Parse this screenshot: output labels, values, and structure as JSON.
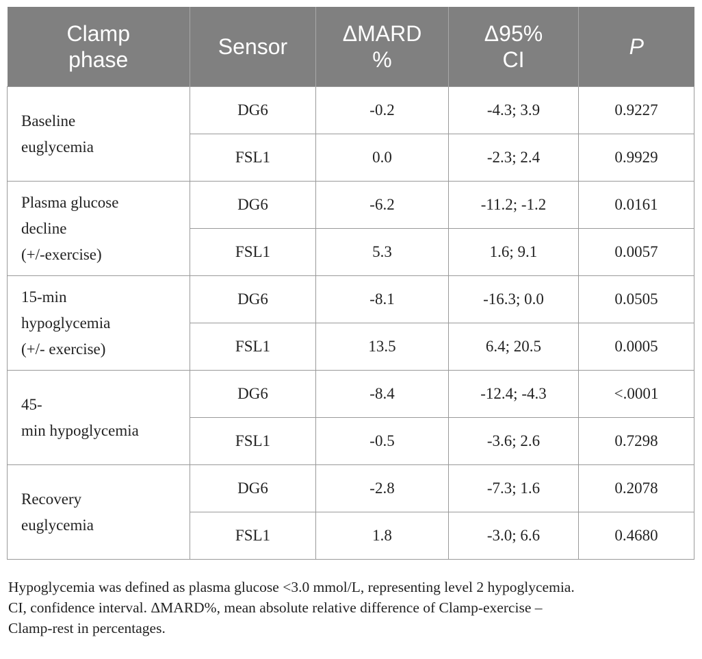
{
  "table": {
    "headers": [
      [
        "Clamp",
        "phase"
      ],
      [
        "Sensor"
      ],
      [
        "ΔMARD",
        "%"
      ],
      [
        "Δ95%",
        "CI"
      ],
      [
        "P"
      ]
    ],
    "groups": [
      {
        "phase_lines": [
          "Baseline",
          "euglycemia"
        ],
        "rows": [
          {
            "sensor": "DG6",
            "dmard": "-0.2",
            "ci": "-4.3; 3.9",
            "p": "0.9227"
          },
          {
            "sensor": "FSL1",
            "dmard": "0.0",
            "ci": "-2.3; 2.4",
            "p": "0.9929"
          }
        ]
      },
      {
        "phase_lines": [
          "Plasma glucose",
          "decline",
          "(+/-exercise)"
        ],
        "rows": [
          {
            "sensor": "DG6",
            "dmard": "-6.2",
            "ci": "-11.2; -1.2",
            "p": "0.0161"
          },
          {
            "sensor": "FSL1",
            "dmard": "5.3",
            "ci": "1.6; 9.1",
            "p": "0.0057"
          }
        ]
      },
      {
        "phase_lines": [
          "15-min",
          "hypoglycemia",
          "(+/- exercise)"
        ],
        "rows": [
          {
            "sensor": "DG6",
            "dmard": "-8.1",
            "ci": "-16.3; 0.0",
            "p": "0.0505"
          },
          {
            "sensor": "FSL1",
            "dmard": "13.5",
            "ci": "6.4; 20.5",
            "p": "0.0005"
          }
        ]
      },
      {
        "phase_lines": [
          "45-",
          "min hypoglycemia"
        ],
        "rows": [
          {
            "sensor": "DG6",
            "dmard": "-8.4",
            "ci": "-12.4; -4.3",
            "p": "<.0001"
          },
          {
            "sensor": "FSL1",
            "dmard": "-0.5",
            "ci": "-3.6; 2.6",
            "p": "0.7298"
          }
        ]
      },
      {
        "phase_lines": [
          "Recovery",
          "euglycemia"
        ],
        "rows": [
          {
            "sensor": "DG6",
            "dmard": "-2.8",
            "ci": "-7.3; 1.6",
            "p": "0.2078"
          },
          {
            "sensor": "FSL1",
            "dmard": "1.8",
            "ci": "-3.0; 6.6",
            "p": "0.4680"
          }
        ]
      }
    ]
  },
  "footnote": {
    "lines": [
      "Hypoglycemia was defined as plasma glucose <3.0 mmol/L, representing level 2 hypoglycemia.",
      "CI, confidence interval. ΔMARD%, mean absolute relative difference of Clamp-exercise –",
      "Clamp-rest in percentages."
    ]
  }
}
